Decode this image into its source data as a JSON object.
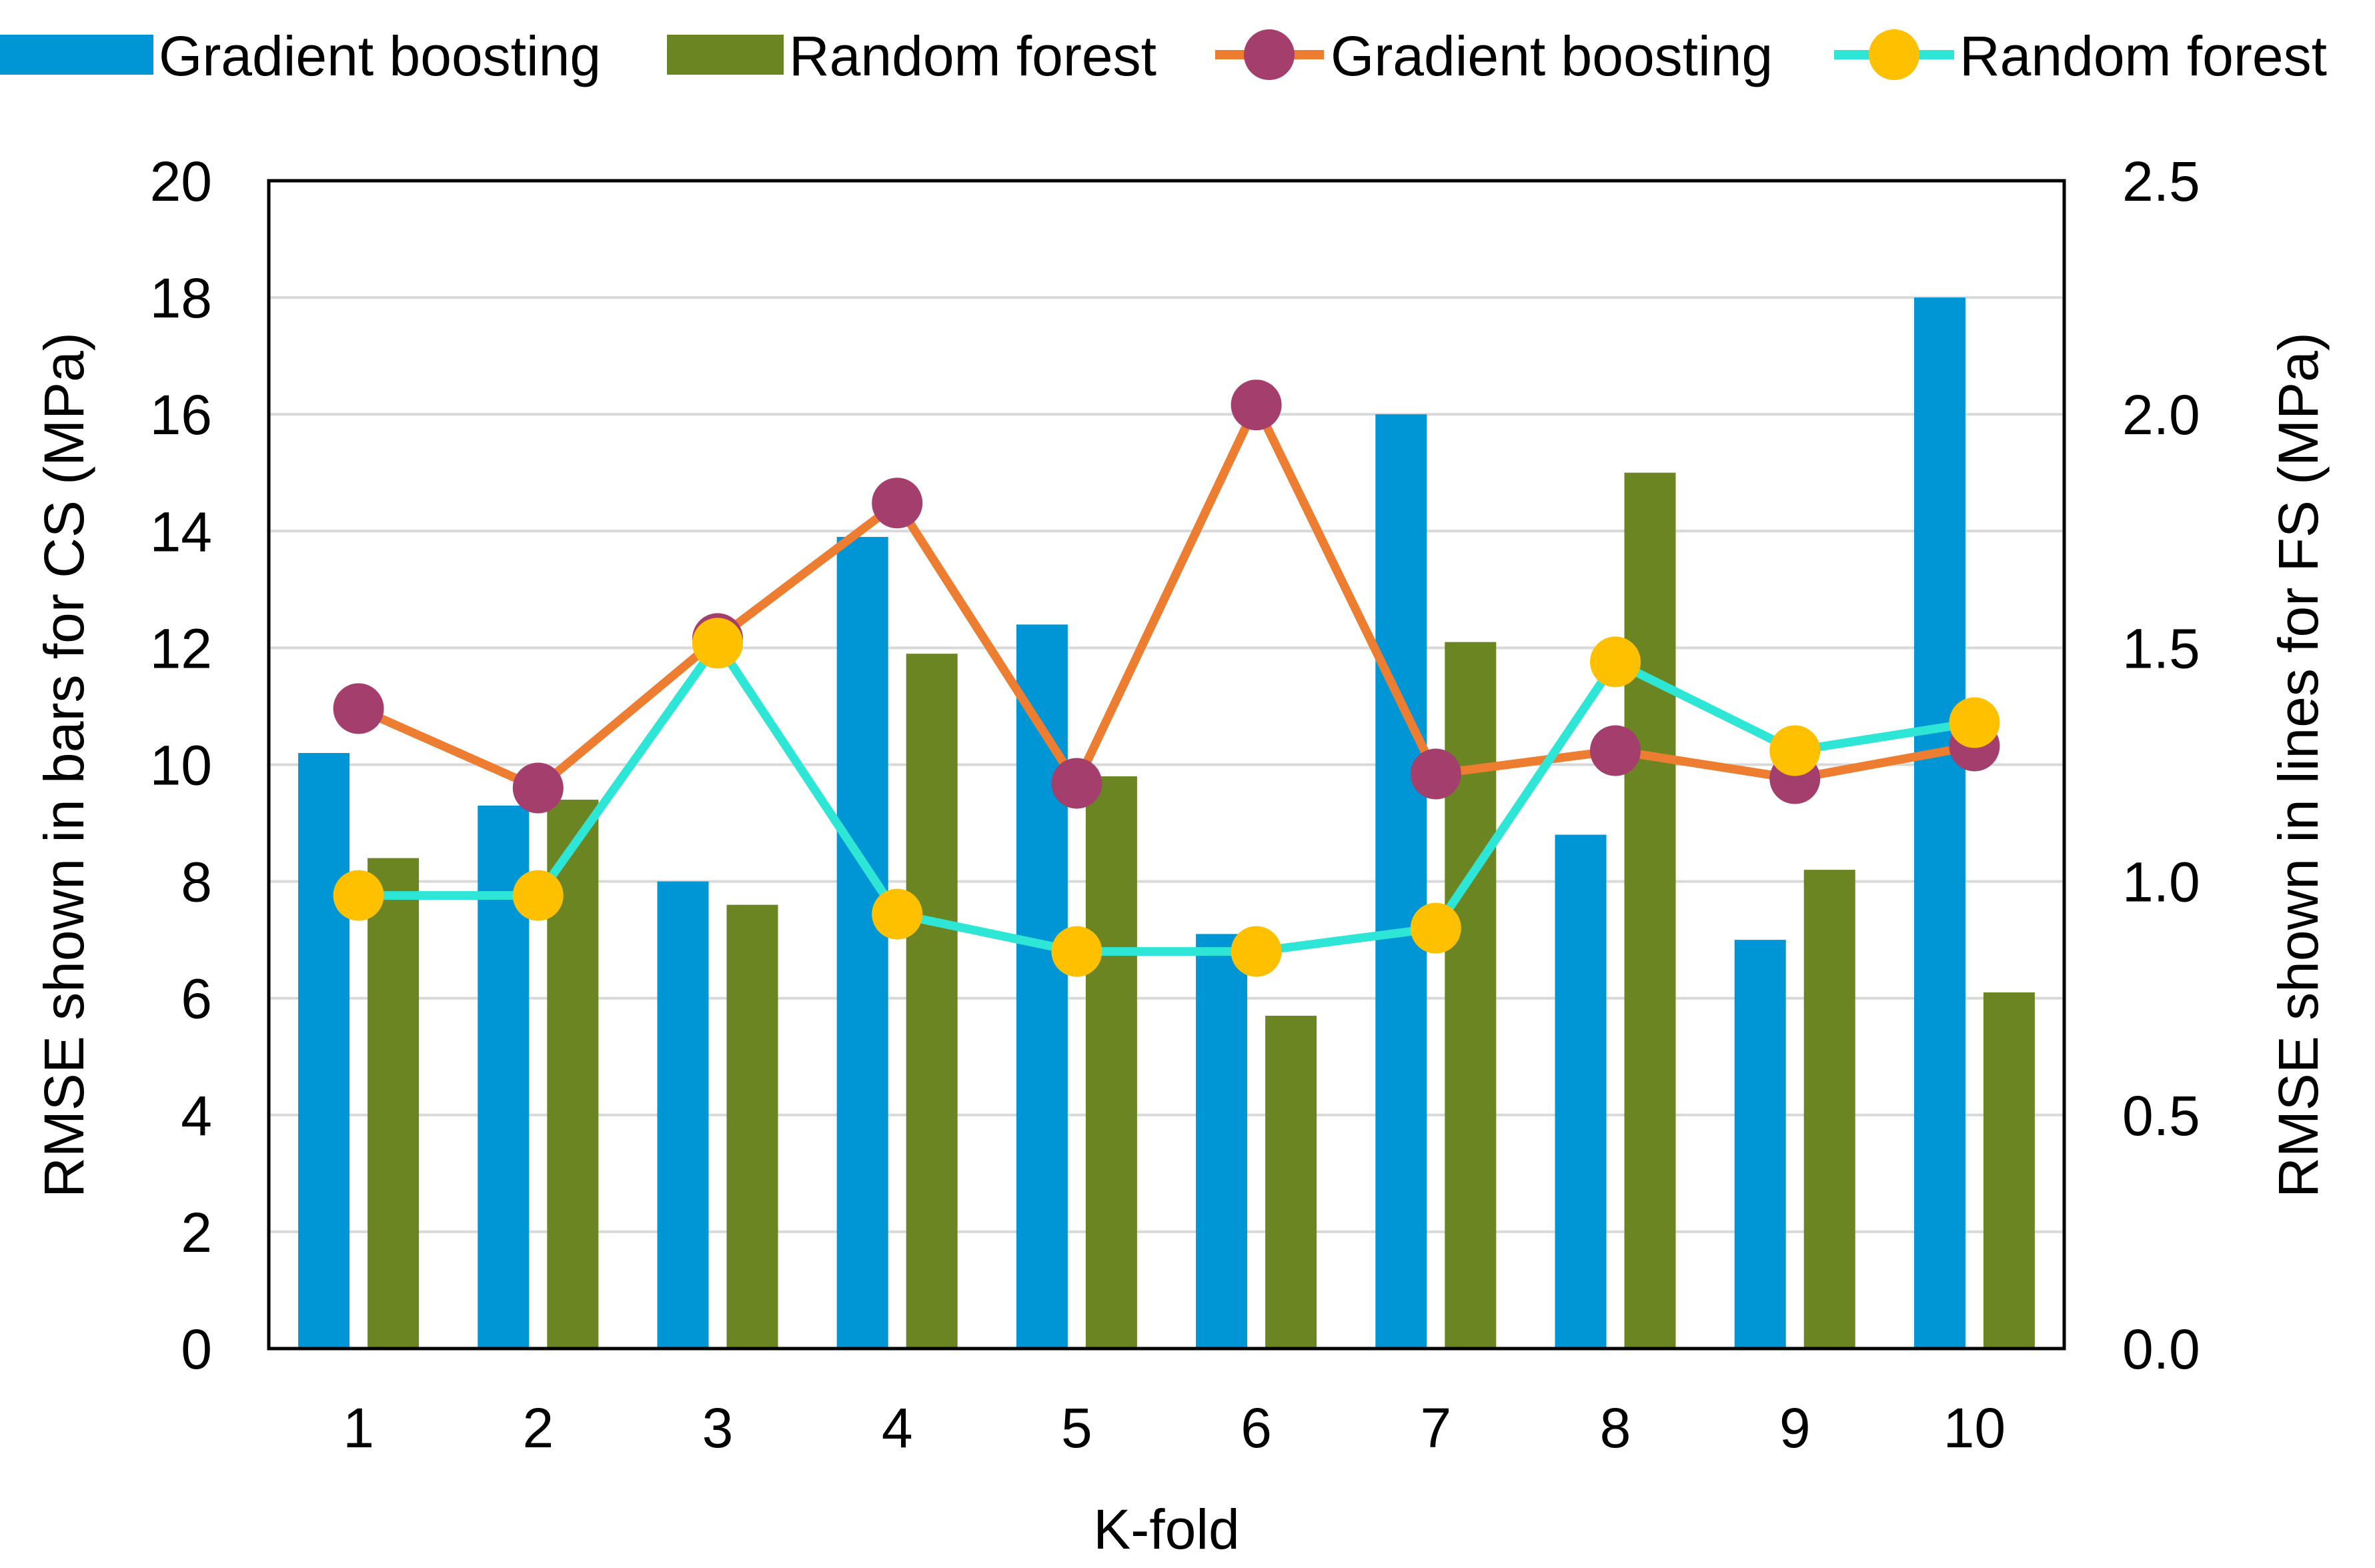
{
  "chart_data": {
    "type": "bar",
    "title": "",
    "xlabel": "K-fold",
    "ylabel": "RMSE shown in bars for CS (MPa)",
    "y2label": "RMSE shown in lines for FS (MPa)",
    "categories": [
      "1",
      "2",
      "3",
      "4",
      "5",
      "6",
      "7",
      "8",
      "9",
      "10"
    ],
    "ylim": [
      0,
      20
    ],
    "yticks": [
      "0",
      "2",
      "4",
      "6",
      "8",
      "10",
      "12",
      "14",
      "16",
      "18",
      "20"
    ],
    "y2lim": [
      0,
      2.5
    ],
    "y2ticks": [
      "0.0",
      "0.5",
      "1.0",
      "1.5",
      "2.0",
      "2.5"
    ],
    "grid": true,
    "legend_position": "top",
    "bar_series": [
      {
        "name": "Gradient boosting",
        "axis": "left",
        "color": "#0095D4",
        "values": [
          10.2,
          9.3,
          8.0,
          13.9,
          12.4,
          7.1,
          16.0,
          8.8,
          7.0,
          18.0
        ]
      },
      {
        "name": "Random forest",
        "axis": "left",
        "color": "#6B8523",
        "values": [
          8.4,
          9.4,
          7.6,
          11.9,
          9.8,
          5.7,
          12.1,
          15.0,
          8.2,
          6.1
        ]
      }
    ],
    "line_series": [
      {
        "name": "Gradient boosting",
        "axis": "right",
        "line_color": "#ED7D31",
        "marker_color": "#A43E6C",
        "values": [
          1.37,
          1.2,
          1.52,
          1.81,
          1.21,
          2.02,
          1.23,
          1.28,
          1.22,
          1.29
        ]
      },
      {
        "name": "Random forest",
        "axis": "right",
        "line_color": "#2EE6D6",
        "marker_color": "#FFC000",
        "values": [
          0.97,
          0.97,
          1.51,
          0.93,
          0.85,
          0.85,
          0.9,
          1.47,
          1.28,
          1.34
        ]
      }
    ]
  }
}
